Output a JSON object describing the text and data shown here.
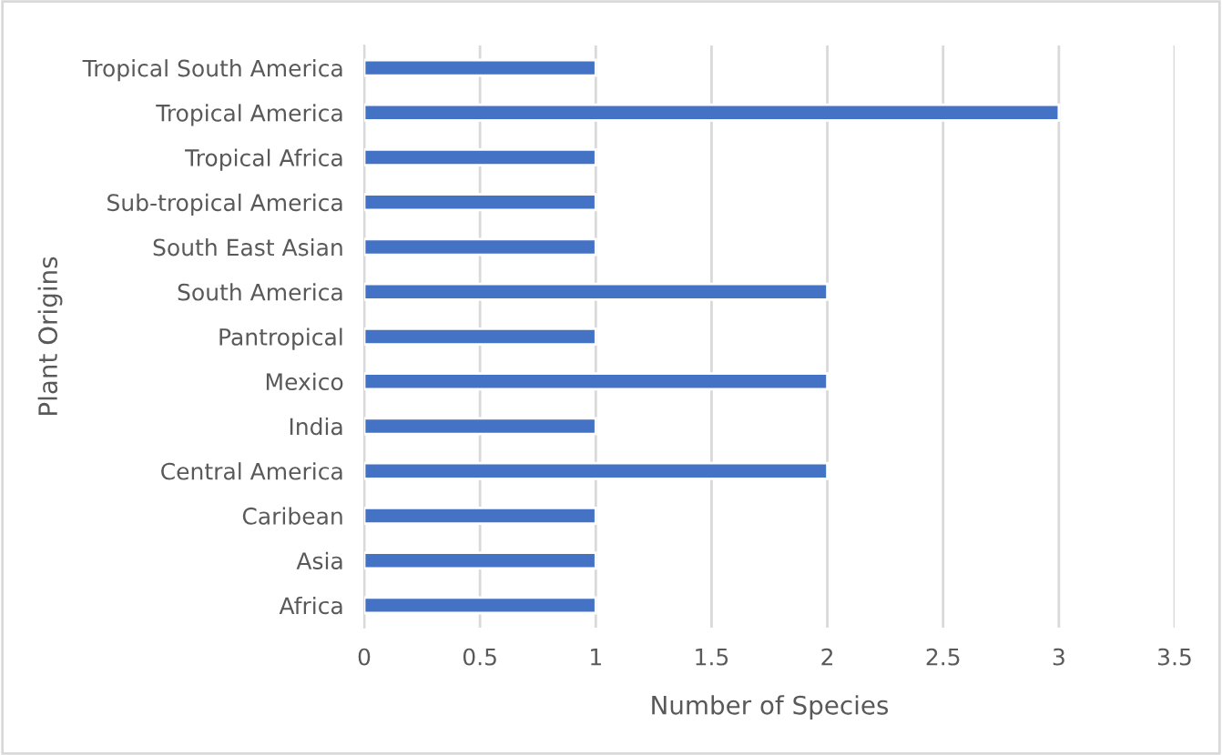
{
  "chart_data": {
    "type": "bar",
    "orientation": "horizontal",
    "xlabel": "Number of Species",
    "ylabel": "Plant Origins",
    "categories": [
      "Tropical South America",
      "Tropical America",
      "Tropical Africa",
      "Sub-tropical America",
      "South East Asian",
      "South America",
      "Pantropical",
      "Mexico",
      "India",
      "Central America",
      "Caribean",
      "Asia",
      "Africa"
    ],
    "values": [
      1,
      3,
      1,
      1,
      1,
      2,
      1,
      2,
      1,
      2,
      1,
      1,
      1
    ],
    "color": "#4472c4",
    "xlim": [
      0,
      3.5
    ],
    "xticks": [
      0,
      0.5,
      1,
      1.5,
      2,
      2.5,
      3,
      3.5
    ],
    "grid": "x"
  }
}
